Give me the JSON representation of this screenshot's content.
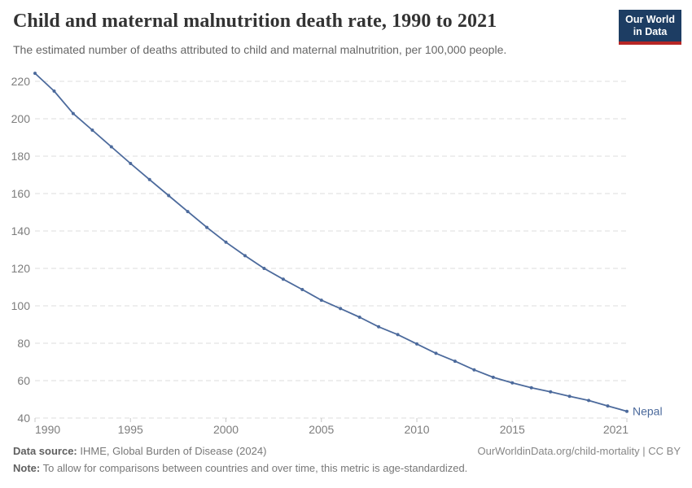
{
  "header": {
    "title": "Child and maternal malnutrition death rate, 1990 to 2021",
    "subtitle": "The estimated number of deaths attributed to child and maternal malnutrition, per 100,000 people.",
    "logo": {
      "line1": "Our World",
      "line2": "in Data",
      "bg": "#1d3d63",
      "accent": "#b62625"
    }
  },
  "chart_data": {
    "type": "line",
    "title": "Child and maternal malnutrition death rate, 1990 to 2021",
    "subtitle": "The estimated number of deaths attributed to child and maternal malnutrition, per 100,000 people.",
    "xlabel": "",
    "ylabel": "",
    "grid": "horizontal-dashed",
    "legend_position": "end-of-line-label",
    "xlim": [
      1990,
      2021
    ],
    "ylim": [
      40,
      225
    ],
    "yticks": [
      40,
      60,
      80,
      100,
      120,
      140,
      160,
      180,
      200,
      220
    ],
    "xticks": [
      1990,
      1995,
      2000,
      2005,
      2010,
      2015,
      2021
    ],
    "x": [
      1990,
      1991,
      1992,
      1993,
      1994,
      1995,
      1996,
      1997,
      1998,
      1999,
      2000,
      2001,
      2002,
      2003,
      2004,
      2005,
      2006,
      2007,
      2008,
      2009,
      2010,
      2011,
      2012,
      2013,
      2014,
      2015,
      2016,
      2017,
      2018,
      2019,
      2020,
      2021
    ],
    "series": [
      {
        "name": "Nepal",
        "color": "#4c6a9c",
        "values": [
          224.3,
          214.8,
          202.8,
          193.9,
          185.0,
          176.1,
          167.5,
          158.9,
          150.4,
          141.9,
          134.0,
          126.8,
          120.0,
          114.2,
          108.7,
          103.0,
          98.5,
          93.9,
          88.8,
          84.6,
          79.6,
          74.6,
          70.4,
          65.8,
          61.8,
          58.8,
          56.2,
          54.0,
          51.6,
          49.4,
          46.5,
          43.6
        ]
      }
    ],
    "colors": {
      "gridline": "#dcdcdc",
      "tick_label": "#7d7d7d",
      "axis_tick": "#c8c8c8"
    }
  },
  "footer": {
    "source_label": "Data source:",
    "source_text": " IHME, Global Burden of Disease (2024)",
    "link": "OurWorldinData.org/child-mortality | CC BY",
    "note_label": "Note:",
    "note_text": " To allow for comparisons between countries and over time, this metric is age-standardized."
  }
}
